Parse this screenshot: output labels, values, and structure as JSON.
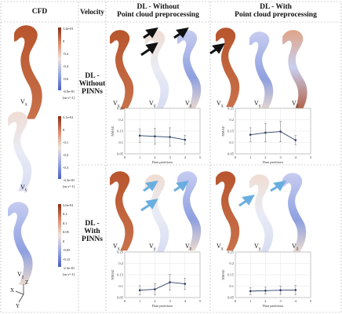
{
  "headers": {
    "cfd": "CFD",
    "velocity": "Velocity",
    "dl_without": "DL - Without\nPoint cloud preprocessing",
    "dl_with": "DL - With\nPoint cloud preprocessing"
  },
  "rows": [
    {
      "label": "DL -\nWithout\nPINNs"
    },
    {
      "label": "DL -\nWith\nPINNs"
    }
  ],
  "cfd_colorbars": [
    {
      "ticks": [
        "1.4e-01",
        "0",
        "-0.2",
        "-0.4",
        "-0.6",
        "-6.9e-01"
      ],
      "unit": "[m s^-1]"
    },
    {
      "ticks": [
        "3.1e-01",
        "0",
        "-0.1",
        "-0.2",
        "-0.3",
        "-4.3e-01"
      ],
      "unit": "[m s^-1]"
    },
    {
      "ticks": [
        "3.0e-01",
        "0.2",
        "0.1",
        "0.05",
        "0",
        "-0.05",
        "-0.15",
        "-2.3e-01"
      ],
      "unit": "[m s^-1]"
    }
  ],
  "component_labels": {
    "vx": "V",
    "vy": "V",
    "vz": "V",
    "sx": "x",
    "sy": "y",
    "sz": "z"
  },
  "axes_labels": {
    "z": "Z",
    "x": "X",
    "y": "Y"
  },
  "chart_data": [
    {
      "type": "line",
      "xlabel": "Data partitions",
      "ylabel": "NMAE",
      "x": [
        1,
        2,
        3,
        4
      ],
      "values": [
        0.13,
        0.127,
        0.124,
        0.112
      ],
      "err": [
        0.03,
        0.035,
        0.04,
        0.02
      ],
      "xlim": [
        0,
        5
      ],
      "ylim": [
        0.05,
        0.25
      ],
      "yticks": [
        0.05,
        0.1,
        0.15,
        0.2,
        0.25
      ],
      "xticks": [
        0,
        1,
        2,
        3,
        4,
        5
      ]
    },
    {
      "type": "line",
      "xlabel": "Data partitions",
      "ylabel": "NMAE",
      "x": [
        1,
        2,
        3,
        4
      ],
      "values": [
        0.134,
        0.143,
        0.148,
        0.11
      ],
      "err": [
        0.03,
        0.04,
        0.045,
        0.02
      ],
      "xlim": [
        0,
        5
      ],
      "ylim": [
        0.05,
        0.25
      ],
      "yticks": [
        0.05,
        0.1,
        0.15,
        0.2,
        0.25
      ],
      "xticks": [
        0,
        1,
        2,
        3,
        4,
        5
      ]
    },
    {
      "type": "line",
      "xlabel": "Data partitions",
      "ylabel": "NMAE",
      "x": [
        1,
        2,
        3,
        4
      ],
      "values": [
        0.082,
        0.086,
        0.117,
        0.11
      ],
      "err": [
        0.02,
        0.025,
        0.035,
        0.025
      ],
      "xlim": [
        0,
        5
      ],
      "ylim": [
        0.05,
        0.25
      ],
      "yticks": [
        0.05,
        0.1,
        0.15,
        0.2,
        0.25
      ],
      "xticks": [
        0,
        1,
        2,
        3,
        4,
        5
      ]
    },
    {
      "type": "line",
      "xlabel": "Data partitions",
      "ylabel": "NMAE",
      "x": [
        1,
        2,
        3,
        4
      ],
      "values": [
        0.078,
        0.08,
        0.082,
        0.083
      ],
      "err": [
        0.015,
        0.015,
        0.018,
        0.02
      ],
      "xlim": [
        0,
        5
      ],
      "ylim": [
        0.05,
        0.25
      ],
      "yticks": [
        0.05,
        0.1,
        0.15,
        0.2,
        0.25
      ],
      "xticks": [
        0,
        1,
        2,
        3,
        4,
        5
      ]
    }
  ],
  "colors": {
    "red": "#b5532b",
    "lightred": "#e3b39c",
    "blue": "#6d86d6",
    "lightblue": "#c6cff0",
    "grey": "#eeeeee",
    "line": "#2b3f66",
    "arrow_black": "#111111",
    "arrow_blue": "#6aaee0"
  }
}
